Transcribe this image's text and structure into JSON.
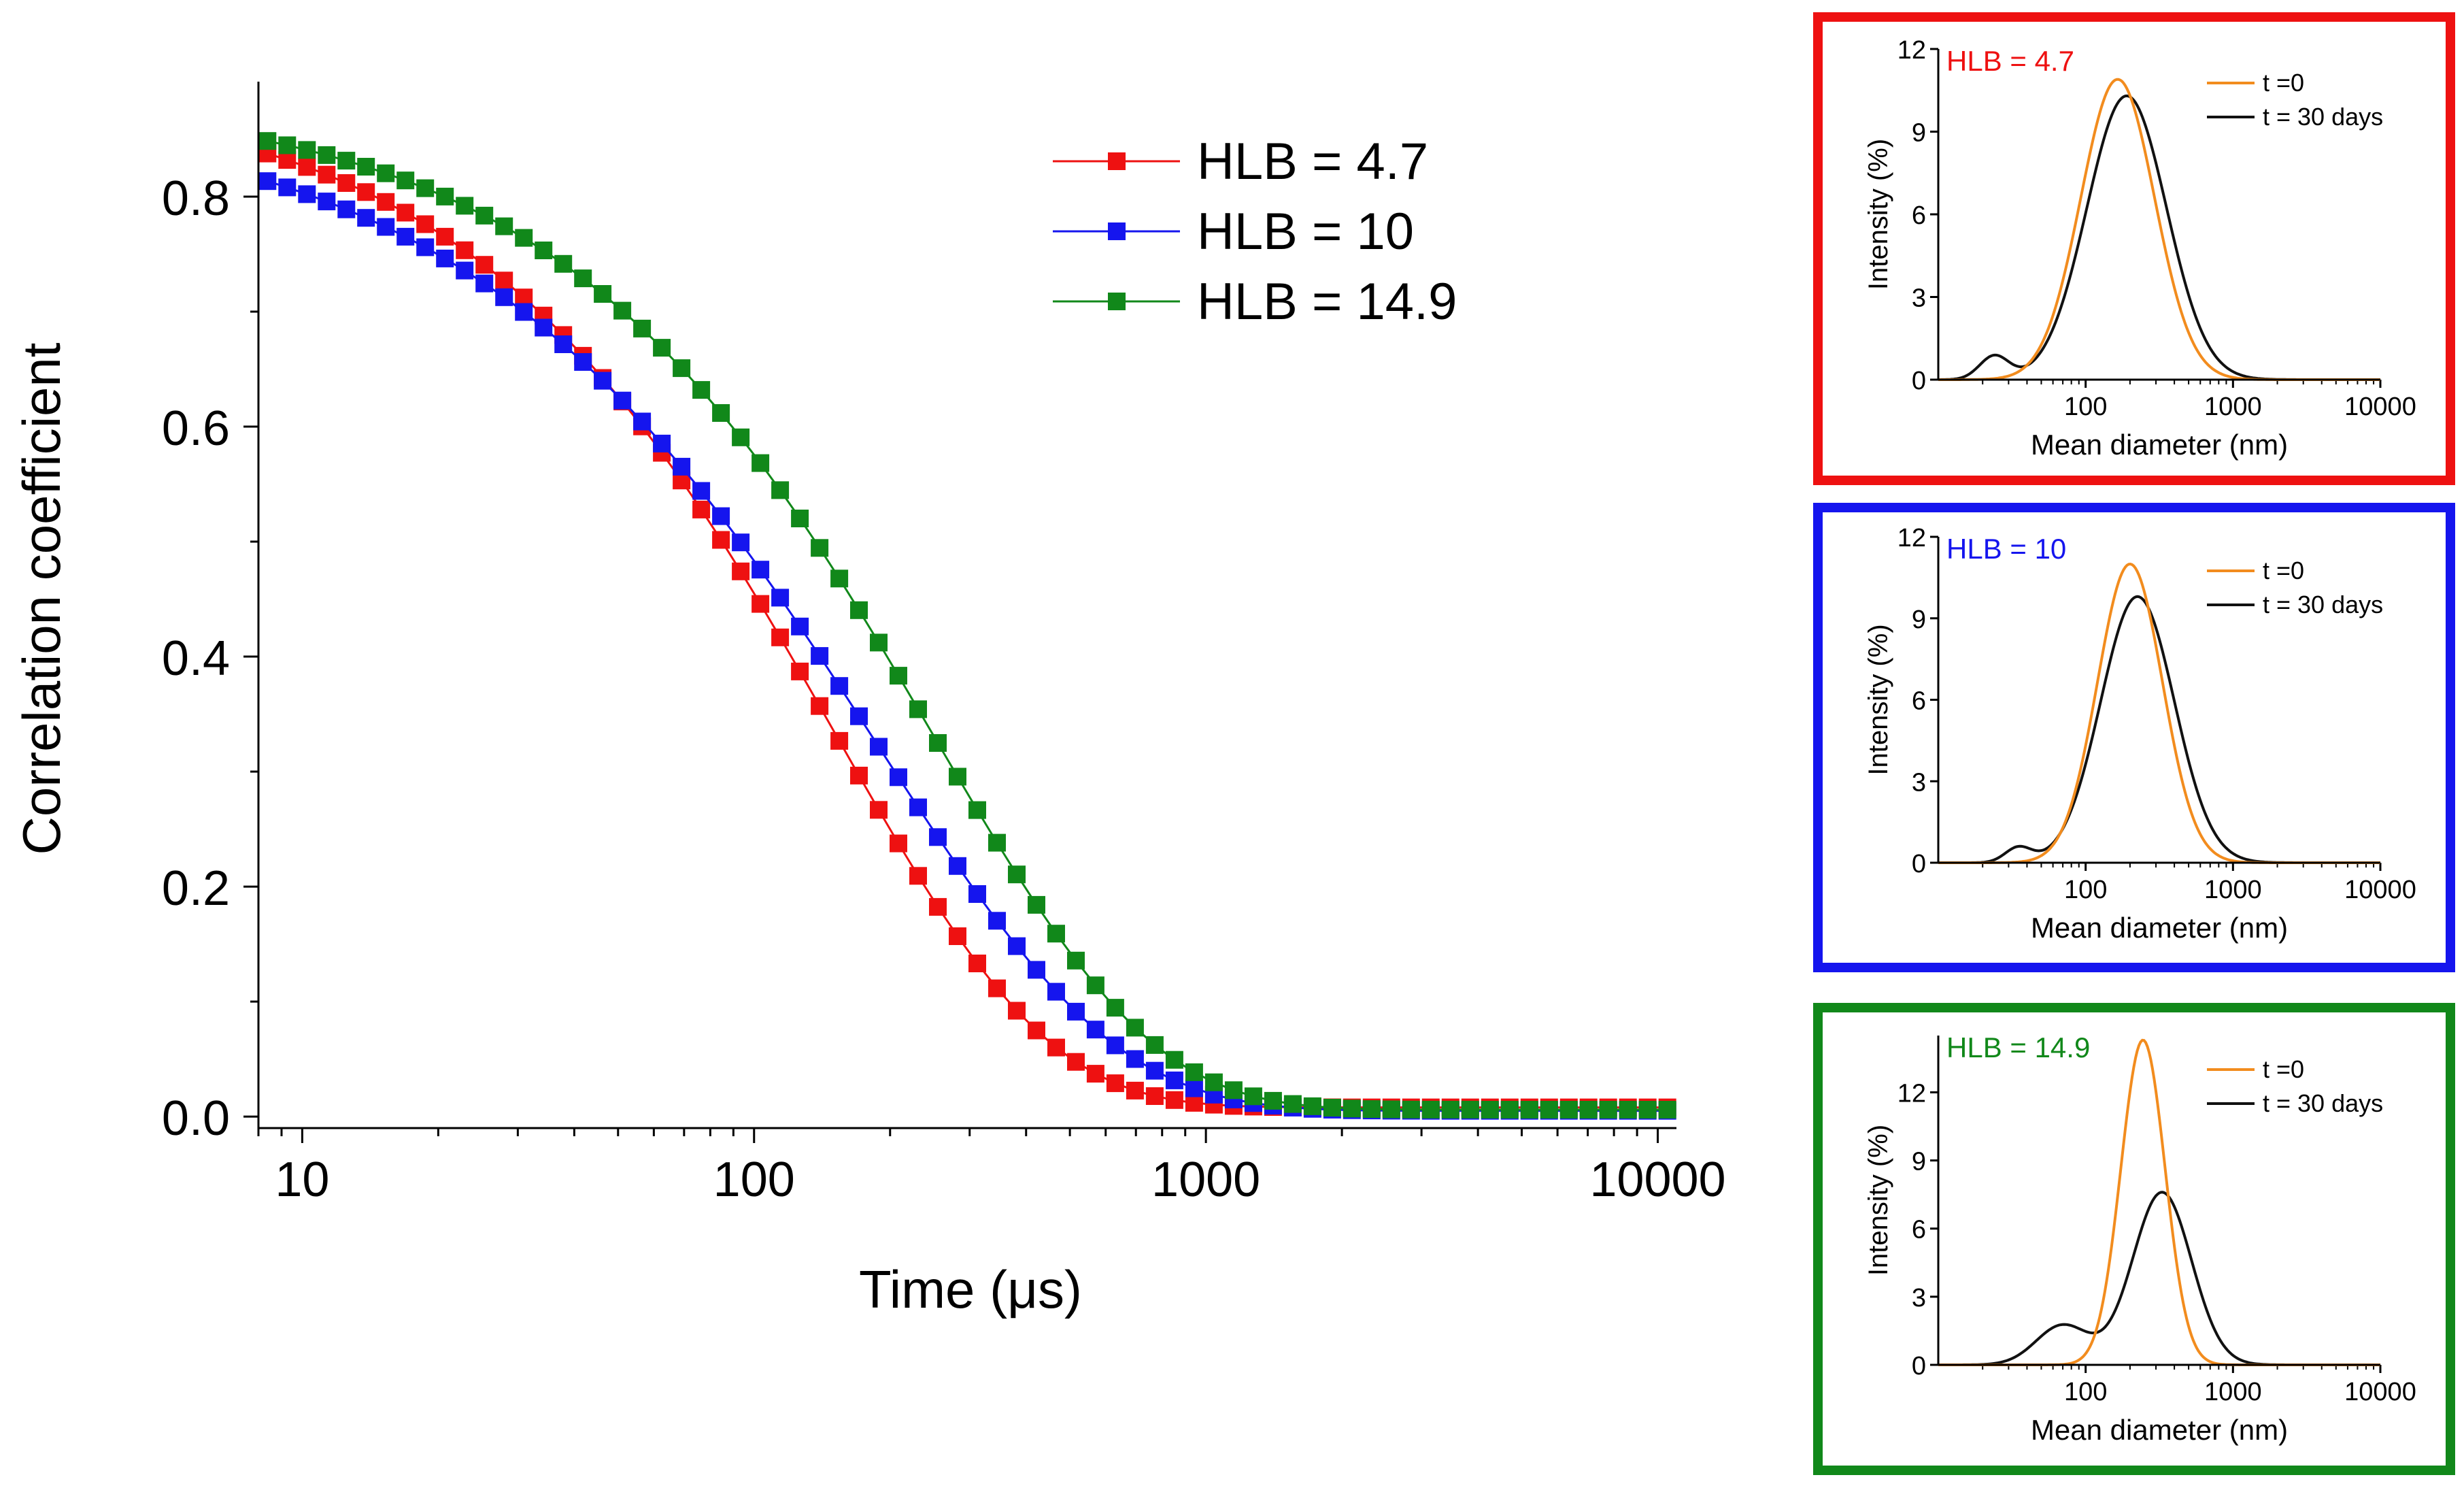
{
  "colors": {
    "hlb47": "#ee1111",
    "hlb10": "#1515ee",
    "hlb149": "#11881a",
    "t0": "#f28c1e",
    "t30": "#111111",
    "axis": "#000000"
  },
  "chart_data": [
    {
      "id": "main",
      "type": "scatter",
      "title": "",
      "xlabel": "Time (μs)",
      "ylabel": "Correlation coefficient",
      "xscale": "log",
      "xlim": [
        8,
        11000
      ],
      "ylim": [
        -0.01,
        0.9
      ],
      "xticks": [
        10,
        100,
        1000,
        10000
      ],
      "xtick_labels": [
        "10",
        "100",
        "1000",
        "10000"
      ],
      "yticks": [
        0.0,
        0.2,
        0.4,
        0.6,
        0.8
      ],
      "ytick_labels": [
        "0.0",
        "0.2",
        "0.4",
        "0.6",
        "0.8"
      ],
      "legend_position": "top-center",
      "legend": [
        "HLB = 4.7",
        "HLB = 10",
        "HLB = 14.9"
      ],
      "series": [
        {
          "name": "HLB = 4.7",
          "color_key": "hlb47",
          "tau": 150,
          "beta": 0.92,
          "a": 0.89,
          "baseline": 0.008
        },
        {
          "name": "HLB = 10",
          "color_key": "hlb10",
          "tau": 185,
          "beta": 0.82,
          "a": 0.875,
          "baseline": 0.005
        },
        {
          "name": "HLB = 14.9",
          "color_key": "hlb149",
          "tau": 250,
          "beta": 0.9,
          "a": 0.883,
          "baseline": 0.006
        }
      ]
    },
    {
      "id": "inset1",
      "type": "line",
      "panel_label": "HLB = 4.7",
      "label_color_key": "hlb47",
      "xlabel": "Mean diameter (nm)",
      "ylabel": "Intensity (%)",
      "xscale": "log",
      "xlim": [
        10,
        10000
      ],
      "ylim": [
        0,
        12
      ],
      "xticks": [
        100,
        1000,
        10000
      ],
      "xtick_labels": [
        "100",
        "1000",
        "10000"
      ],
      "yticks": [
        0,
        3,
        6,
        9,
        12
      ],
      "ytick_labels": [
        "0",
        "3",
        "6",
        "9",
        "12"
      ],
      "legend": [
        "t =0",
        "t = 30 days"
      ],
      "series": [
        {
          "name": "t =0",
          "color_key": "t0",
          "peaks": [
            {
              "center": 165,
              "height": 10.9,
              "width": 0.25
            }
          ]
        },
        {
          "name": "t = 30 days",
          "color_key": "t30",
          "peaks": [
            {
              "center": 190,
              "height": 10.3,
              "width": 0.27
            },
            {
              "center": 24,
              "height": 0.85,
              "width": 0.1
            }
          ]
        }
      ]
    },
    {
      "id": "inset2",
      "type": "line",
      "panel_label": "HLB = 10",
      "label_color_key": "hlb10",
      "xlabel": "Mean diameter (nm)",
      "ylabel": "Intensity (%)",
      "xscale": "log",
      "xlim": [
        10,
        10000
      ],
      "ylim": [
        0,
        12
      ],
      "xticks": [
        100,
        1000,
        10000
      ],
      "xtick_labels": [
        "100",
        "1000",
        "10000"
      ],
      "yticks": [
        0,
        3,
        6,
        9,
        12
      ],
      "ytick_labels": [
        "0",
        "3",
        "6",
        "9",
        "12"
      ],
      "legend": [
        "t =0",
        "t = 30 days"
      ],
      "series": [
        {
          "name": "t =0",
          "color_key": "t0",
          "peaks": [
            {
              "center": 200,
              "height": 11.0,
              "width": 0.22
            }
          ]
        },
        {
          "name": "t = 30 days",
          "color_key": "t30",
          "peaks": [
            {
              "center": 225,
              "height": 9.8,
              "width": 0.25
            },
            {
              "center": 35,
              "height": 0.55,
              "width": 0.09
            }
          ]
        }
      ]
    },
    {
      "id": "inset3",
      "type": "line",
      "panel_label": "HLB = 14.9",
      "label_color_key": "hlb149",
      "xlabel": "Mean diameter (nm)",
      "ylabel": "Intensity (%)",
      "xscale": "log",
      "xlim": [
        10,
        10000
      ],
      "ylim": [
        0,
        14.5
      ],
      "xticks": [
        100,
        1000,
        10000
      ],
      "xtick_labels": [
        "100",
        "1000",
        "10000"
      ],
      "yticks": [
        0,
        3,
        6,
        9,
        12
      ],
      "ytick_labels": [
        "0",
        "3",
        "6",
        "9",
        "12"
      ],
      "legend": [
        "t =0",
        "t = 30 days"
      ],
      "series": [
        {
          "name": "t =0",
          "color_key": "t0",
          "peaks": [
            {
              "center": 245,
              "height": 14.3,
              "width": 0.15
            }
          ]
        },
        {
          "name": "t = 30 days",
          "color_key": "t30",
          "peaks": [
            {
              "center": 330,
              "height": 7.6,
              "width": 0.2
            },
            {
              "center": 70,
              "height": 1.75,
              "width": 0.18
            }
          ]
        }
      ]
    }
  ]
}
